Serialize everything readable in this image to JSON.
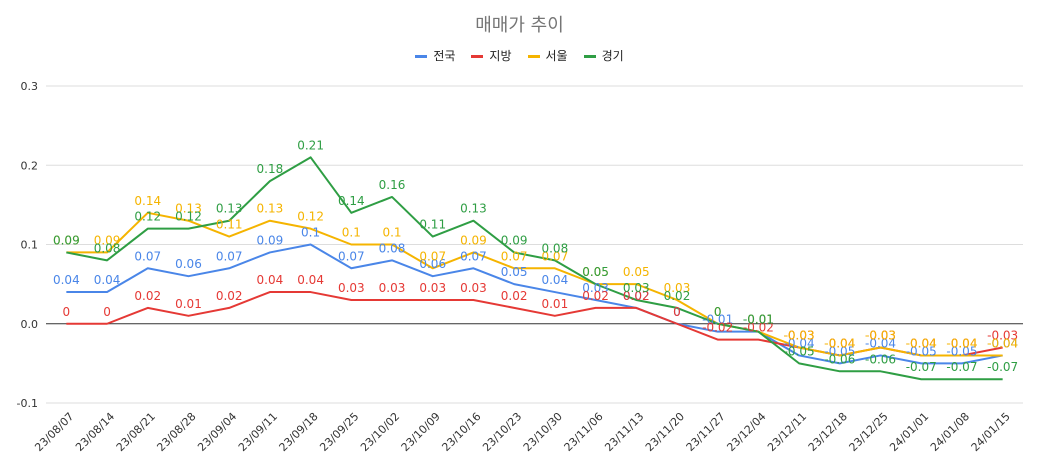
{
  "chart_data": {
    "type": "line",
    "title": "매매가 추이",
    "categories": [
      "23/08/07",
      "23/08/14",
      "23/08/21",
      "23/08/28",
      "23/09/04",
      "23/09/11",
      "23/09/18",
      "23/09/25",
      "23/10/02",
      "23/10/09",
      "23/10/16",
      "23/10/23",
      "23/10/30",
      "23/11/06",
      "23/11/13",
      "23/11/20",
      "23/11/27",
      "23/12/04",
      "23/12/11",
      "23/12/18",
      "23/12/25",
      "24/01/01",
      "24/01/08",
      "24/01/15"
    ],
    "ylim": [
      -0.1,
      0.3
    ],
    "yticks": [
      "0.3",
      "0.2",
      "0.1",
      "0.0",
      "-0.1"
    ],
    "legend_position": "top",
    "gridlines": true,
    "series": [
      {
        "name": "전국",
        "color": "#4a86e8",
        "values": [
          0.04,
          0.04,
          0.07,
          0.06,
          0.07,
          0.09,
          0.1,
          0.07,
          0.08,
          0.06,
          0.07,
          0.05,
          0.04,
          0.03,
          0.02,
          0,
          -0.01,
          -0.01,
          -0.04,
          -0.05,
          -0.04,
          -0.05,
          -0.05,
          -0.04
        ]
      },
      {
        "name": "지방",
        "color": "#e53935",
        "values": [
          0,
          0,
          0.02,
          0.01,
          0.02,
          0.04,
          0.04,
          0.03,
          0.03,
          0.03,
          0.03,
          0.02,
          0.01,
          0.02,
          0.02,
          0,
          -0.02,
          -0.02,
          -0.03,
          -0.04,
          -0.03,
          -0.04,
          -0.04,
          -0.03
        ]
      },
      {
        "name": "서울",
        "color": "#f5b400",
        "values": [
          0.09,
          0.09,
          0.14,
          0.13,
          0.11,
          0.13,
          0.12,
          0.1,
          0.1,
          0.07,
          0.09,
          0.07,
          0.07,
          0.05,
          0.05,
          0.03,
          0,
          -0.01,
          -0.03,
          -0.04,
          -0.03,
          -0.04,
          -0.04,
          -0.04
        ]
      },
      {
        "name": "경기",
        "color": "#2f9e44",
        "values": [
          0.09,
          0.08,
          0.12,
          0.12,
          0.13,
          0.18,
          0.21,
          0.14,
          0.16,
          0.11,
          0.13,
          0.09,
          0.08,
          0.05,
          0.03,
          0.02,
          0,
          -0.01,
          -0.05,
          -0.06,
          -0.06,
          -0.07,
          -0.07,
          -0.07
        ]
      }
    ]
  }
}
